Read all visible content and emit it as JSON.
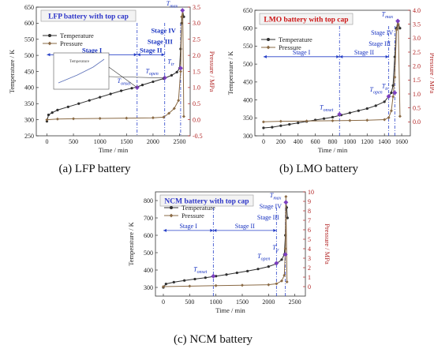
{
  "chart_data": [
    {
      "type": "line",
      "title": "LFP battery with top cap",
      "title_color": "#2d35c8",
      "caption": "(a) LFP battery",
      "xlabel": "Time / min",
      "ylabel": "Temperature / K",
      "y2label": "Pressure / MPa",
      "xlim": [
        -200,
        2700
      ],
      "ylim": [
        250,
        650
      ],
      "y2lim": [
        -0.5,
        3.5
      ],
      "xticks": [
        "0",
        "500",
        "1000",
        "1500",
        "2000",
        "2500"
      ],
      "yticks": [
        "250",
        "300",
        "350",
        "400",
        "450",
        "500",
        "550",
        "600",
        "650"
      ],
      "y2ticks": [
        "-0.5",
        "0.0",
        "0.5",
        "1.0",
        "1.5",
        "2.0",
        "2.5",
        "3.0",
        "3.5"
      ],
      "legend": [
        "Temperature",
        "Pressure"
      ],
      "stages": [
        {
          "label": "Stage I",
          "from": 0,
          "to": 1700
        },
        {
          "label": "Stage II",
          "from": 1700,
          "to": 2220
        },
        {
          "label": "Stage III",
          "at": 2400
        },
        {
          "label": "Stage IV",
          "at": 2460
        }
      ],
      "markers": [
        {
          "label": "T",
          "sub": "onset",
          "t": 1700,
          "temp": 400
        },
        {
          "label": "T",
          "sub": "open",
          "t": 2220,
          "temp": 430
        },
        {
          "label": "T",
          "sub": "tr",
          "t": 2520,
          "temp": 460
        },
        {
          "label": "T",
          "sub": "max",
          "t": 2555,
          "temp": 640
        }
      ],
      "vlines": [
        1700,
        2220,
        2520
      ],
      "inset": true,
      "inset_label": "Temperature",
      "series": [
        {
          "name": "Temperature",
          "axis": "left",
          "x": [
            0,
            30,
            100,
            200,
            400,
            600,
            800,
            1000,
            1200,
            1400,
            1600,
            1700,
            1800,
            2000,
            2200,
            2350,
            2450,
            2500,
            2520,
            2540,
            2555,
            2580
          ],
          "y": [
            295,
            315,
            322,
            330,
            340,
            350,
            360,
            370,
            380,
            390,
            398,
            402,
            408,
            418,
            428,
            438,
            448,
            460,
            520,
            600,
            640,
            620
          ]
        },
        {
          "name": "Pressure",
          "axis": "right",
          "x": [
            0,
            200,
            500,
            1000,
            1500,
            2000,
            2200,
            2300,
            2400,
            2480,
            2520,
            2540,
            2560,
            2580
          ],
          "y": [
            0.0,
            0.02,
            0.03,
            0.04,
            0.05,
            0.06,
            0.08,
            0.2,
            0.35,
            0.6,
            1.5,
            3.2,
            3.4,
            0.1
          ]
        }
      ]
    },
    {
      "type": "line",
      "title": "LMO battery with top cap",
      "title_color": "#cc1515",
      "caption": "(b) LMO battery",
      "xlabel": "Time / min",
      "ylabel": "Temperature / K",
      "y2label": "Pressure / MPa",
      "xlim": [
        -100,
        1700
      ],
      "ylim": [
        300,
        650
      ],
      "y2lim": [
        -0.5,
        4.0
      ],
      "xticks": [
        "0",
        "200",
        "400",
        "600",
        "800",
        "1000",
        "1200",
        "1400",
        "1600"
      ],
      "yticks": [
        "300",
        "350",
        "400",
        "450",
        "500",
        "550",
        "600",
        "650"
      ],
      "y2ticks": [
        "0.0",
        "0.5",
        "1.0",
        "1.5",
        "2.0",
        "2.5",
        "3.0",
        "3.5",
        "4.0"
      ],
      "legend": [
        "Temperature",
        "Pressure"
      ],
      "stages": [
        {
          "label": "Stage I",
          "from": 0,
          "to": 880
        },
        {
          "label": "Stage II",
          "from": 880,
          "to": 1450
        },
        {
          "label": "Stage III",
          "at": 1490
        },
        {
          "label": "Stage IV",
          "at": 1520
        }
      ],
      "markers": [
        {
          "label": "T",
          "sub": "onset",
          "t": 880,
          "temp": 360
        },
        {
          "label": "T",
          "sub": "open",
          "t": 1450,
          "temp": 410
        },
        {
          "label": "T",
          "sub": "tr",
          "t": 1520,
          "temp": 420
        },
        {
          "label": "T",
          "sub": "max",
          "t": 1555,
          "temp": 620
        }
      ],
      "vlines": [
        880,
        1450,
        1520
      ],
      "series": [
        {
          "name": "Temperature",
          "axis": "left",
          "x": [
            0,
            100,
            200,
            300,
            400,
            500,
            600,
            700,
            800,
            900,
            1000,
            1100,
            1200,
            1300,
            1400,
            1450,
            1480,
            1500,
            1520,
            1540,
            1555,
            1580
          ],
          "y": [
            322,
            324,
            328,
            332,
            336,
            340,
            344,
            348,
            352,
            358,
            364,
            370,
            376,
            384,
            395,
            410,
            420,
            440,
            520,
            600,
            618,
            600
          ]
        },
        {
          "name": "Pressure",
          "axis": "right",
          "x": [
            0,
            200,
            500,
            800,
            1000,
            1200,
            1400,
            1450,
            1480,
            1500,
            1520,
            1540,
            1560,
            1580
          ],
          "y": [
            0.0,
            0.02,
            0.03,
            0.04,
            0.05,
            0.06,
            0.08,
            0.15,
            0.4,
            0.9,
            1.6,
            3.3,
            3.5,
            0.2
          ]
        }
      ]
    },
    {
      "type": "line",
      "title": "NCM battery with top cap",
      "title_color": "#2d35c8",
      "caption": "(c) NCM battery",
      "xlabel": "Time / min",
      "ylabel": "Temperature / K",
      "y2label": "Pressure / MPa",
      "xlim": [
        -150,
        2700
      ],
      "ylim": [
        250,
        850
      ],
      "y2lim": [
        -1,
        10
      ],
      "xticks": [
        "0",
        "500",
        "1000",
        "1500",
        "2000",
        "2500"
      ],
      "yticks": [
        "300",
        "400",
        "500",
        "600",
        "700",
        "800"
      ],
      "y2ticks": [
        "0",
        "1",
        "2",
        "3",
        "4",
        "5",
        "6",
        "7",
        "8",
        "9",
        "10"
      ],
      "legend": [
        "Temperature",
        "Pressure"
      ],
      "stages": [
        {
          "label": "Stage I",
          "from": 0,
          "to": 950
        },
        {
          "label": "Stage II",
          "from": 950,
          "to": 2150
        },
        {
          "label": "Stage III",
          "at": 2230
        },
        {
          "label": "Stage IV",
          "at": 2280
        }
      ],
      "markers": [
        {
          "label": "T",
          "sub": "onset",
          "t": 950,
          "temp": 365
        },
        {
          "label": "T",
          "sub": "open",
          "t": 2150,
          "temp": 440
        },
        {
          "label": "T",
          "sub": "tr",
          "t": 2320,
          "temp": 490
        },
        {
          "label": "T",
          "sub": "max",
          "t": 2330,
          "temp": 790
        }
      ],
      "vlines": [
        950,
        2150,
        2320
      ],
      "series": [
        {
          "name": "Temperature",
          "axis": "left",
          "x": [
            0,
            50,
            200,
            400,
            600,
            800,
            1000,
            1200,
            1400,
            1600,
            1800,
            2000,
            2150,
            2250,
            2300,
            2320,
            2330,
            2345,
            2360
          ],
          "y": [
            300,
            320,
            330,
            340,
            348,
            356,
            365,
            374,
            384,
            394,
            406,
            420,
            436,
            460,
            490,
            600,
            790,
            760,
            700
          ]
        },
        {
          "name": "Pressure",
          "axis": "right",
          "x": [
            0,
            500,
            1000,
            1500,
            2000,
            2150,
            2250,
            2300,
            2320,
            2330,
            2350
          ],
          "y": [
            0.0,
            0.05,
            0.1,
            0.15,
            0.2,
            0.3,
            0.6,
            1.2,
            4.0,
            9.5,
            0.5
          ]
        }
      ]
    }
  ]
}
